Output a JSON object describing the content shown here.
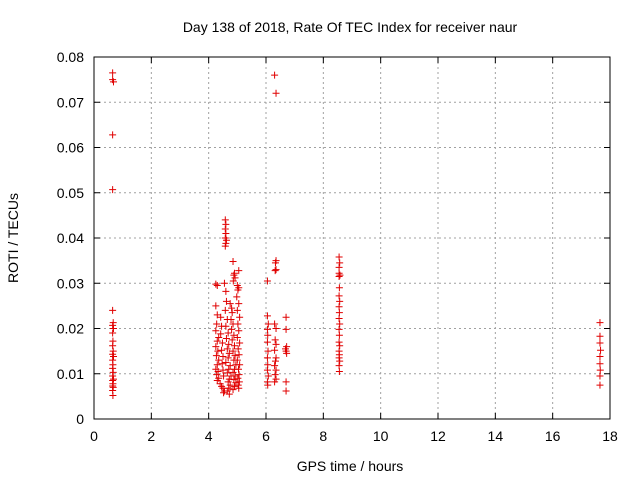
{
  "chart_data": {
    "type": "scatter",
    "title": "Day 138 of 2018, Rate Of TEC Index for receiver naur",
    "xlabel": "GPS time / hours",
    "ylabel": "ROTI / TECUs",
    "xlim": [
      0,
      18
    ],
    "ylim": [
      0,
      0.08
    ],
    "xticks": [
      0,
      2,
      4,
      6,
      8,
      10,
      12,
      14,
      16,
      18
    ],
    "xtick_labels": [
      "0",
      "2",
      "4",
      "6",
      "8",
      "10",
      "12",
      "14",
      "16",
      "18"
    ],
    "yticks": [
      0,
      0.01,
      0.02,
      0.03,
      0.04,
      0.05,
      0.06,
      0.07,
      0.08
    ],
    "ytick_labels": [
      "0",
      "0.01",
      "0.02",
      "0.03",
      "0.04",
      "0.05",
      "0.06",
      "0.07",
      "0.08"
    ],
    "grid": true,
    "marker": "+",
    "color": "#e00000",
    "series": [
      {
        "name": "ROTI",
        "points": [
          [
            0.65,
            0.0765
          ],
          [
            0.65,
            0.075
          ],
          [
            0.68,
            0.0745
          ],
          [
            0.65,
            0.0628
          ],
          [
            0.65,
            0.0507
          ],
          [
            0.65,
            0.024
          ],
          [
            0.67,
            0.0213
          ],
          [
            0.65,
            0.0207
          ],
          [
            0.68,
            0.02
          ],
          [
            0.65,
            0.019
          ],
          [
            0.66,
            0.0172
          ],
          [
            0.65,
            0.0162
          ],
          [
            0.67,
            0.015
          ],
          [
            0.65,
            0.0143
          ],
          [
            0.68,
            0.0138
          ],
          [
            0.65,
            0.013
          ],
          [
            0.66,
            0.012
          ],
          [
            0.65,
            0.0112
          ],
          [
            0.67,
            0.0103
          ],
          [
            0.65,
            0.0095
          ],
          [
            0.68,
            0.0088
          ],
          [
            0.65,
            0.0085
          ],
          [
            0.66,
            0.0078
          ],
          [
            0.65,
            0.0073
          ],
          [
            0.67,
            0.007
          ],
          [
            0.65,
            0.0063
          ],
          [
            0.66,
            0.0052
          ],
          [
            4.25,
            0.0298
          ],
          [
            4.3,
            0.0295
          ],
          [
            4.25,
            0.025
          ],
          [
            4.3,
            0.023
          ],
          [
            4.28,
            0.021
          ],
          [
            4.25,
            0.0195
          ],
          [
            4.35,
            0.018
          ],
          [
            4.3,
            0.0172
          ],
          [
            4.25,
            0.016
          ],
          [
            4.32,
            0.015
          ],
          [
            4.27,
            0.014
          ],
          [
            4.35,
            0.013
          ],
          [
            4.3,
            0.012
          ],
          [
            4.25,
            0.011
          ],
          [
            4.33,
            0.0105
          ],
          [
            4.28,
            0.0098
          ],
          [
            4.35,
            0.009
          ],
          [
            4.3,
            0.0085
          ],
          [
            4.4,
            0.0078
          ],
          [
            4.45,
            0.0072
          ],
          [
            4.42,
            0.0225
          ],
          [
            4.45,
            0.0205
          ],
          [
            4.42,
            0.0188
          ],
          [
            4.48,
            0.0168
          ],
          [
            4.45,
            0.0152
          ],
          [
            4.5,
            0.0138
          ],
          [
            4.47,
            0.0122
          ],
          [
            4.5,
            0.0108
          ],
          [
            4.52,
            0.0095
          ],
          [
            4.5,
            0.0068
          ],
          [
            4.55,
            0.0062
          ],
          [
            4.52,
            0.0058
          ],
          [
            4.58,
            0.044
          ],
          [
            4.6,
            0.043
          ],
          [
            4.58,
            0.042
          ],
          [
            4.6,
            0.041
          ],
          [
            4.58,
            0.04
          ],
          [
            4.62,
            0.0395
          ],
          [
            4.6,
            0.0388
          ],
          [
            4.58,
            0.0382
          ],
          [
            4.55,
            0.03
          ],
          [
            4.6,
            0.0282
          ],
          [
            4.62,
            0.026
          ],
          [
            4.58,
            0.024
          ],
          [
            4.65,
            0.022
          ],
          [
            4.6,
            0.0205
          ],
          [
            4.68,
            0.019
          ],
          [
            4.62,
            0.0178
          ],
          [
            4.7,
            0.0165
          ],
          [
            4.65,
            0.0155
          ],
          [
            4.72,
            0.0145
          ],
          [
            4.68,
            0.0135
          ],
          [
            4.6,
            0.0125
          ],
          [
            4.75,
            0.0118
          ],
          [
            4.7,
            0.011
          ],
          [
            4.65,
            0.0102
          ],
          [
            4.78,
            0.0095
          ],
          [
            4.72,
            0.0088
          ],
          [
            4.68,
            0.0082
          ],
          [
            4.75,
            0.0075
          ],
          [
            4.7,
            0.0068
          ],
          [
            4.65,
            0.0062
          ],
          [
            4.72,
            0.0055
          ],
          [
            4.75,
            0.0255
          ],
          [
            4.8,
            0.0245
          ],
          [
            4.82,
            0.0235
          ],
          [
            4.78,
            0.022
          ],
          [
            4.85,
            0.021
          ],
          [
            4.8,
            0.0198
          ],
          [
            4.88,
            0.0185
          ],
          [
            4.82,
            0.0175
          ],
          [
            4.9,
            0.0162
          ],
          [
            4.85,
            0.015
          ],
          [
            4.92,
            0.014
          ],
          [
            4.88,
            0.013
          ],
          [
            4.95,
            0.012
          ],
          [
            4.9,
            0.011
          ],
          [
            4.85,
            0.0103
          ],
          [
            4.92,
            0.0095
          ],
          [
            4.88,
            0.0087
          ],
          [
            4.95,
            0.008
          ],
          [
            4.9,
            0.0072
          ],
          [
            4.85,
            0.0065
          ],
          [
            4.85,
            0.0348
          ],
          [
            4.9,
            0.0322
          ],
          [
            4.88,
            0.0318
          ],
          [
            4.92,
            0.0312
          ],
          [
            4.86,
            0.0305
          ],
          [
            5.0,
            0.0295
          ],
          [
            5.05,
            0.029
          ],
          [
            5.02,
            0.0285
          ],
          [
            5.05,
            0.0328
          ],
          [
            4.98,
            0.027
          ],
          [
            5.05,
            0.0255
          ],
          [
            5.0,
            0.024
          ],
          [
            5.08,
            0.0225
          ],
          [
            5.02,
            0.021
          ],
          [
            5.05,
            0.0195
          ],
          [
            5.0,
            0.018
          ],
          [
            5.08,
            0.0168
          ],
          [
            5.03,
            0.0155
          ],
          [
            5.06,
            0.0142
          ],
          [
            5.0,
            0.013
          ],
          [
            5.08,
            0.012
          ],
          [
            5.04,
            0.011
          ],
          [
            5.06,
            0.0098
          ],
          [
            5.02,
            0.009
          ],
          [
            5.07,
            0.0082
          ],
          [
            5.03,
            0.0075
          ],
          [
            5.05,
            0.0068
          ],
          [
            6.05,
            0.0305
          ],
          [
            6.05,
            0.0228
          ],
          [
            6.08,
            0.021
          ],
          [
            6.05,
            0.0198
          ],
          [
            6.06,
            0.0185
          ],
          [
            6.05,
            0.017
          ],
          [
            6.07,
            0.015
          ],
          [
            6.05,
            0.0135
          ],
          [
            6.06,
            0.012
          ],
          [
            6.05,
            0.0108
          ],
          [
            6.08,
            0.0095
          ],
          [
            6.05,
            0.0082
          ],
          [
            6.06,
            0.0075
          ],
          [
            6.3,
            0.076
          ],
          [
            6.35,
            0.072
          ],
          [
            6.35,
            0.035
          ],
          [
            6.33,
            0.0345
          ],
          [
            6.35,
            0.033
          ],
          [
            6.32,
            0.0328
          ],
          [
            6.3,
            0.021
          ],
          [
            6.35,
            0.02
          ],
          [
            6.32,
            0.0175
          ],
          [
            6.35,
            0.0165
          ],
          [
            6.3,
            0.0152
          ],
          [
            6.35,
            0.0135
          ],
          [
            6.33,
            0.0128
          ],
          [
            6.3,
            0.0118
          ],
          [
            6.35,
            0.0108
          ],
          [
            6.32,
            0.0098
          ],
          [
            6.35,
            0.0088
          ],
          [
            6.3,
            0.0082
          ],
          [
            6.7,
            0.0225
          ],
          [
            6.7,
            0.0198
          ],
          [
            6.72,
            0.016
          ],
          [
            6.68,
            0.0155
          ],
          [
            6.7,
            0.015
          ],
          [
            6.72,
            0.0145
          ],
          [
            6.7,
            0.0082
          ],
          [
            6.7,
            0.0062
          ],
          [
            8.55,
            0.0358
          ],
          [
            8.57,
            0.0345
          ],
          [
            8.55,
            0.0335
          ],
          [
            8.55,
            0.0322
          ],
          [
            8.58,
            0.0318
          ],
          [
            8.55,
            0.0315
          ],
          [
            8.56,
            0.029
          ],
          [
            8.55,
            0.0272
          ],
          [
            8.57,
            0.026
          ],
          [
            8.55,
            0.0248
          ],
          [
            8.56,
            0.0235
          ],
          [
            8.55,
            0.0222
          ],
          [
            8.57,
            0.021
          ],
          [
            8.55,
            0.0198
          ],
          [
            8.56,
            0.0185
          ],
          [
            8.55,
            0.017
          ],
          [
            8.57,
            0.0162
          ],
          [
            8.55,
            0.015
          ],
          [
            8.56,
            0.0142
          ],
          [
            8.55,
            0.0135
          ],
          [
            8.57,
            0.0128
          ],
          [
            8.55,
            0.0118
          ],
          [
            8.56,
            0.0105
          ],
          [
            17.65,
            0.0213
          ],
          [
            17.65,
            0.0183
          ],
          [
            17.65,
            0.0168
          ],
          [
            17.67,
            0.0152
          ],
          [
            17.65,
            0.0138
          ],
          [
            17.65,
            0.0122
          ],
          [
            17.66,
            0.0108
          ],
          [
            17.65,
            0.0095
          ],
          [
            17.65,
            0.0075
          ]
        ]
      }
    ]
  }
}
